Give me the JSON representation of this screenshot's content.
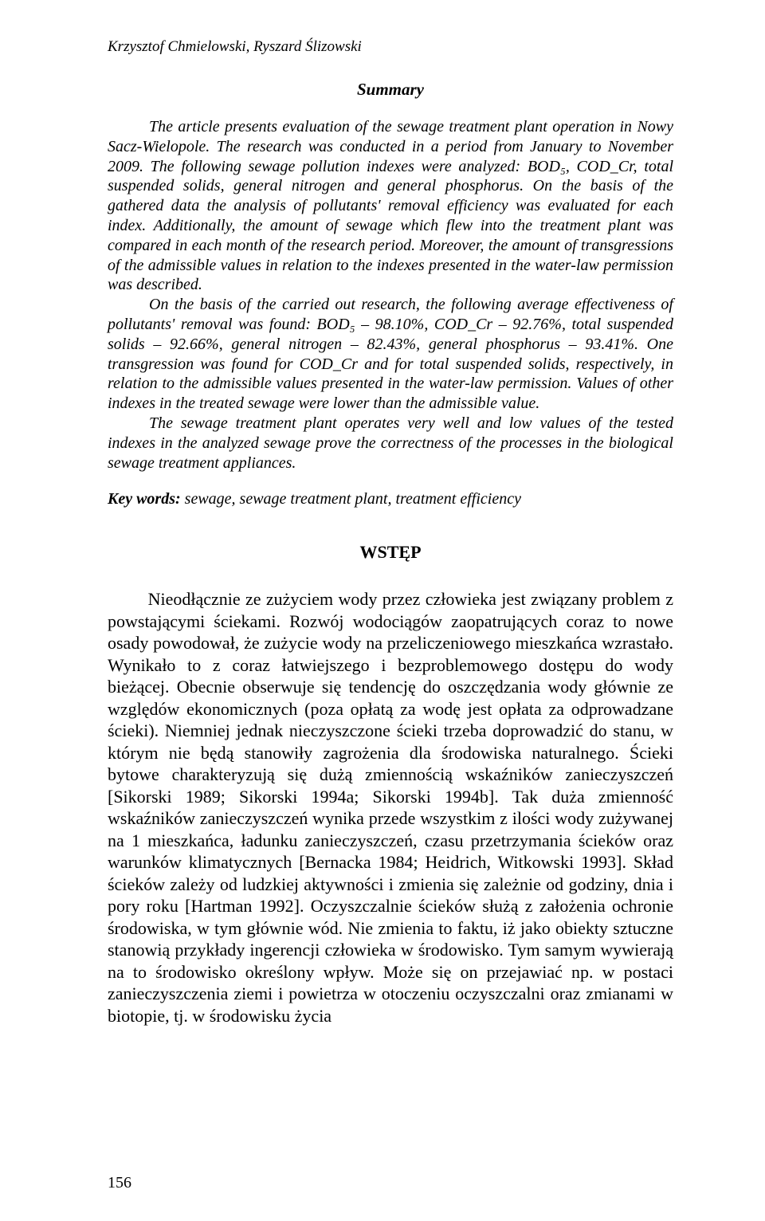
{
  "running_head": "Krzysztof Chmielowski, Ryszard Ślizowski",
  "summary": {
    "heading": "Summary",
    "p1": "The article presents evaluation of the sewage treatment plant operation in Nowy Sacz-Wielopole. The research was conducted in a period from January to November 2009. The following sewage pollution indexes were analyzed: BOD₅, COD_Cr, total suspended solids, general nitrogen and general phosphorus. On the basis of the gathered data the analysis of pollutants' removal efficiency was evaluated for each index. Additionally, the amount of sewage which flew into the treatment plant was compared in each month of the research period. Moreover, the amount of transgressions of the admissible values in relation to the indexes presented in the water-law permission was described.",
    "p2": "On the basis of the carried out research, the following average effectiveness of pollutants' removal was found: BOD₅ – 98.10%, COD_Cr – 92.76%, total suspended solids – 92.66%, general nitrogen – 82.43%, general phosphorus – 93.41%. One transgression was found for COD_Cr and for total suspended solids, respectively, in relation to the admissible values presented in the water-law permission. Values of other indexes in the treated sewage were lower than the admissible value.",
    "p3": "The sewage treatment plant operates very well and low values of the tested indexes in the analyzed sewage prove the correctness of the processes in the biological sewage treatment appliances."
  },
  "keywords": {
    "label": "Key words:",
    "text": " sewage, sewage treatment plant, treatment efficiency"
  },
  "section_heading": "WSTĘP",
  "body": {
    "p1": "Nieodłącznie ze zużyciem wody przez człowieka jest związany problem z powstającymi ściekami. Rozwój wodociągów zaopatrujących coraz to nowe osady powodował, że zużycie wody na przeliczeniowego mieszkańca wzrastało. Wynikało to z coraz łatwiejszego i bezproblemowego dostępu do wody bieżącej. Obecnie obserwuje się tendencję do oszczędzania wody głównie ze względów ekonomicznych (poza opłatą za wodę jest opłata za odprowadzane ścieki). Niemniej jednak nieczyszczone ścieki trzeba doprowadzić do stanu, w którym nie będą stanowiły zagrożenia dla środowiska naturalnego. Ścieki bytowe charakteryzują się dużą zmiennością wskaźników zanieczyszczeń [Sikorski 1989; Sikorski 1994a; Sikorski 1994b]. Tak duża zmienność wskaźników zanieczyszczeń wynika przede wszystkim z ilości wody zużywanej na 1 mieszkańca, ładunku zanieczyszczeń, czasu przetrzymania ścieków oraz warunków klimatycznych [Bernacka 1984; Heidrich, Witkowski 1993]. Skład ścieków zależy od ludzkiej aktywności i zmienia się zależnie od godziny, dnia i pory roku [Hartman 1992]. Oczyszczalnie ścieków służą z założenia ochronie środowiska, w tym głównie wód. Nie zmienia to faktu, iż jako obiekty sztuczne stanowią przykłady ingerencji człowieka w środowisko. Tym samym wywierają na to środowisko określony wpływ. Może się on przejawiać np. w postaci zanieczyszczenia ziemi i powietrza w otoczeniu oczyszczalni oraz zmianami w biotopie, tj. w środowisku życia"
  },
  "page_number": "156"
}
